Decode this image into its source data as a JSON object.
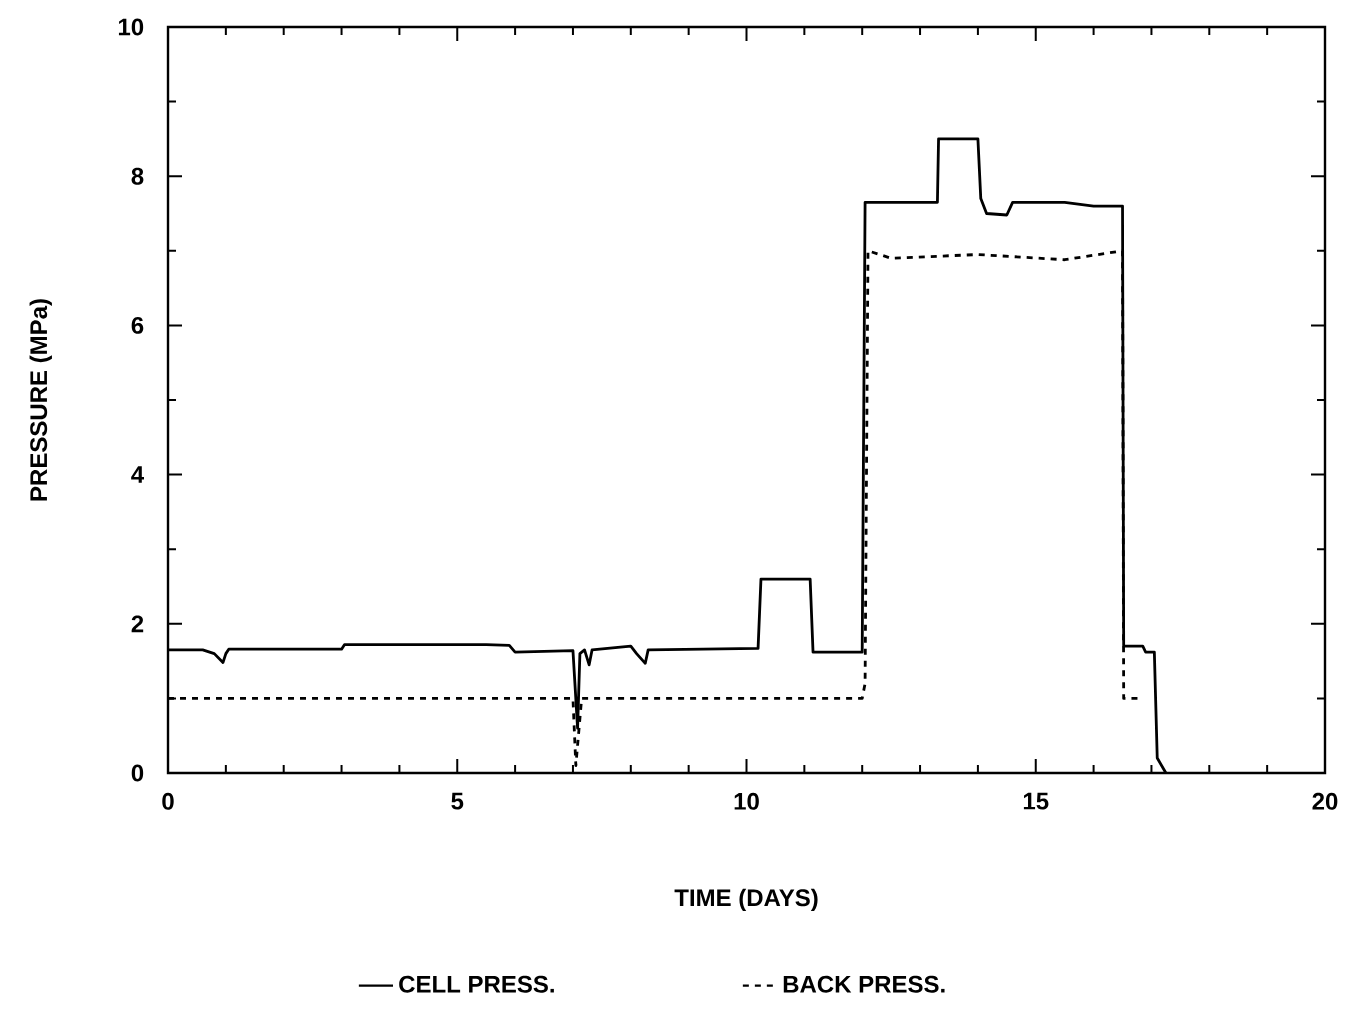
{
  "chart_data": {
    "type": "line",
    "xlabel": "TIME (DAYS)",
    "ylabel": "PRESSURE (MPa)",
    "xlim": [
      0,
      20
    ],
    "ylim": [
      0,
      10
    ],
    "xticks": [
      0,
      5,
      10,
      15,
      20
    ],
    "yticks": [
      0,
      2,
      4,
      6,
      8,
      10
    ],
    "legend": "bottom",
    "marker": "none",
    "series": [
      {
        "name": "CELL PRESS.",
        "color": "#000000",
        "line_style": "solid",
        "x": [
          0,
          0.6,
          0.8,
          0.95,
          1.0,
          1.05,
          3.0,
          3.05,
          5.5,
          5.9,
          6.0,
          7.0,
          7.08,
          7.12,
          7.2,
          7.28,
          7.33,
          8.0,
          8.1,
          8.25,
          8.3,
          10.2,
          10.25,
          11.1,
          11.15,
          12.0,
          12.05,
          13.3,
          13.32,
          14.0,
          14.05,
          14.15,
          14.5,
          14.6,
          15.5,
          16.0,
          16.5,
          16.52,
          16.85,
          16.9,
          17.05,
          17.1,
          17.25
        ],
        "values": [
          1.65,
          1.65,
          1.6,
          1.48,
          1.6,
          1.66,
          1.66,
          1.72,
          1.72,
          1.71,
          1.62,
          1.64,
          0.6,
          1.6,
          1.65,
          1.45,
          1.65,
          1.7,
          1.6,
          1.47,
          1.65,
          1.67,
          2.6,
          2.6,
          1.62,
          1.62,
          7.65,
          7.65,
          8.5,
          8.5,
          7.7,
          7.5,
          7.48,
          7.65,
          7.65,
          7.6,
          7.6,
          1.7,
          1.7,
          1.62,
          1.62,
          0.2,
          0
        ]
      },
      {
        "name": "BACK PRESS.",
        "color": "#000000",
        "line_style": "dashed",
        "x": [
          0,
          4.2,
          7.0,
          7.05,
          7.15,
          12.0,
          12.05,
          12.1,
          12.5,
          14.0,
          15.5,
          16.5,
          16.52,
          16.85
        ],
        "values": [
          1.0,
          1.0,
          1.0,
          0.1,
          1.0,
          1.0,
          1.2,
          7.0,
          6.9,
          6.95,
          6.88,
          7.0,
          1.0,
          1.0
        ]
      }
    ]
  }
}
